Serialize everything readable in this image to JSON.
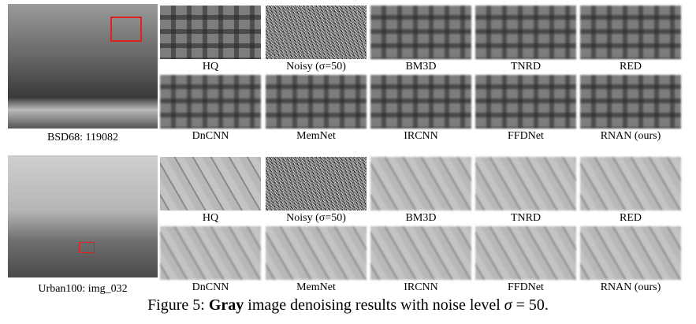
{
  "groups": [
    {
      "image_label": "BSD68: 119082",
      "crop_labels": [
        "HQ",
        "Noisy (σ=50)",
        "BM3D",
        "TNRD",
        "RED",
        "DnCNN",
        "MemNet",
        "IRCNN",
        "FFDNet",
        "RNAN (ours)"
      ]
    },
    {
      "image_label": "Urban100: img_032",
      "crop_labels": [
        "HQ",
        "Noisy (σ=50)",
        "BM3D",
        "TNRD",
        "RED",
        "DnCNN",
        "MemNet",
        "IRCNN",
        "FFDNet",
        "RNAN (ours)"
      ]
    }
  ],
  "caption": {
    "prefix": "Figure 5:",
    "bold": "Gray",
    "text": "image denoising results with noise level",
    "symbol": "σ",
    "end": "= 50."
  }
}
